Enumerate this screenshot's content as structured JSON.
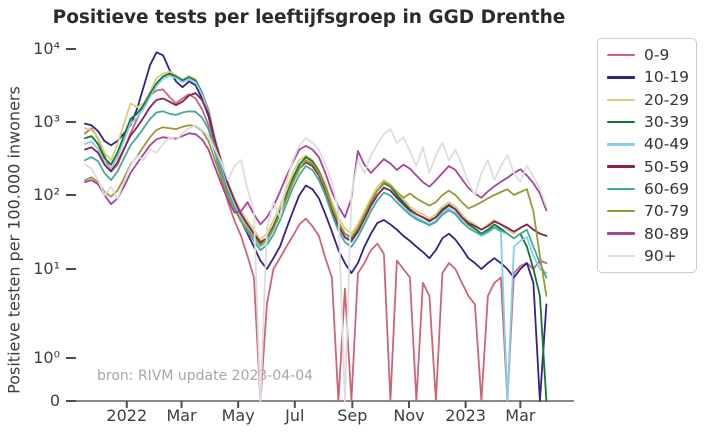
{
  "chart_data": {
    "type": "line",
    "title": "Positieve tests per leeftijfsgroep in GGD Drenthe",
    "ylabel": "Positieve testen per 100.000 inwoners",
    "xlabel": "",
    "source_note": "bron: RIVM update 2023-04-04",
    "yscale": "log-with-zero",
    "ylim": [
      0,
      10000
    ],
    "grid": false,
    "legend_position": "top-right",
    "x_start_date": "2021-11-17",
    "x_step_days": 7,
    "x_domain": [
      "2021-11-17",
      "2023-04-03"
    ],
    "x_ticks": [
      {
        "date": "2022-01-01",
        "label": "2022"
      },
      {
        "date": "2022-03-01",
        "label": "Mar"
      },
      {
        "date": "2022-05-01",
        "label": "May"
      },
      {
        "date": "2022-07-01",
        "label": "Jul"
      },
      {
        "date": "2022-09-01",
        "label": "Sep"
      },
      {
        "date": "2022-11-01",
        "label": "Nov"
      },
      {
        "date": "2023-01-01",
        "label": "2023"
      },
      {
        "date": "2023-03-01",
        "label": "Mar"
      }
    ],
    "y_ticks": [
      {
        "value": 10000,
        "label": "10⁴"
      },
      {
        "value": 1000,
        "label": "10³"
      },
      {
        "value": 100,
        "label": "10²"
      },
      {
        "value": 10,
        "label": "10¹"
      },
      {
        "value": 1,
        "label": "10⁰"
      },
      {
        "value": 0,
        "label": "0"
      }
    ],
    "series": [
      {
        "name": "0-9",
        "color": "#CC6677",
        "values": [
          700,
          820,
          600,
          350,
          210,
          260,
          420,
          700,
          1100,
          1600,
          2300,
          2700,
          2800,
          2200,
          1800,
          2100,
          2400,
          2100,
          1500,
          900,
          400,
          160,
          80,
          45,
          28,
          15,
          8,
          0,
          4,
          10,
          14,
          20,
          28,
          40,
          48,
          38,
          28,
          14,
          8,
          0,
          6,
          0,
          9,
          12,
          18,
          22,
          16,
          0,
          13,
          10,
          8,
          0,
          7,
          5,
          0,
          9,
          12,
          10,
          7,
          5,
          4,
          0,
          5,
          7,
          8,
          0,
          9,
          11,
          12,
          10,
          13,
          12
        ]
      },
      {
        "name": "10-19",
        "color": "#332288",
        "values": [
          950,
          900,
          750,
          550,
          480,
          550,
          700,
          900,
          1500,
          3000,
          6000,
          9000,
          8200,
          5200,
          3600,
          3000,
          3600,
          3200,
          2100,
          1200,
          500,
          240,
          120,
          70,
          45,
          30,
          20,
          13,
          10,
          14,
          20,
          35,
          60,
          100,
          135,
          120,
          90,
          55,
          32,
          18,
          12,
          9,
          12,
          20,
          30,
          42,
          46,
          40,
          34,
          28,
          24,
          20,
          17,
          14,
          18,
          26,
          30,
          25,
          19,
          14,
          12,
          10,
          12,
          14,
          12,
          10,
          8,
          10,
          12,
          7,
          0,
          4
        ]
      },
      {
        "name": "20-29",
        "color": "#DDCC77",
        "values": [
          820,
          780,
          620,
          380,
          300,
          500,
          950,
          1800,
          1600,
          1800,
          2600,
          4000,
          4600,
          4900,
          4400,
          3800,
          4300,
          3900,
          2600,
          1500,
          600,
          300,
          150,
          90,
          60,
          45,
          34,
          25,
          30,
          45,
          70,
          120,
          200,
          300,
          350,
          300,
          220,
          140,
          80,
          50,
          35,
          30,
          40,
          60,
          90,
          130,
          160,
          140,
          110,
          88,
          70,
          60,
          55,
          48,
          55,
          70,
          80,
          70,
          55,
          45,
          40,
          34,
          40,
          46,
          40,
          34,
          30,
          36,
          40,
          34,
          30,
          28
        ]
      },
      {
        "name": "30-39",
        "color": "#117733",
        "values": [
          600,
          640,
          500,
          320,
          260,
          380,
          650,
          1100,
          1300,
          1700,
          2400,
          3400,
          4200,
          4600,
          4200,
          3700,
          4100,
          3700,
          2500,
          1400,
          550,
          260,
          130,
          80,
          55,
          40,
          30,
          22,
          26,
          38,
          60,
          100,
          170,
          260,
          330,
          290,
          210,
          130,
          70,
          42,
          30,
          26,
          35,
          52,
          80,
          115,
          145,
          130,
          100,
          80,
          64,
          55,
          50,
          44,
          50,
          64,
          74,
          64,
          50,
          40,
          35,
          30,
          34,
          40,
          35,
          30,
          26,
          30,
          20,
          10,
          5,
          0
        ]
      },
      {
        "name": "40-49",
        "color": "#88CCEE",
        "values": [
          500,
          540,
          430,
          280,
          230,
          330,
          560,
          950,
          1150,
          1500,
          2200,
          3100,
          3900,
          4300,
          4000,
          3500,
          3900,
          3500,
          2400,
          1350,
          520,
          250,
          125,
          75,
          50,
          36,
          27,
          20,
          23,
          34,
          54,
          90,
          150,
          230,
          300,
          260,
          190,
          115,
          62,
          38,
          26,
          23,
          31,
          46,
          70,
          100,
          130,
          115,
          90,
          72,
          58,
          50,
          45,
          40,
          45,
          58,
          66,
          58,
          45,
          36,
          32,
          28,
          31,
          36,
          32,
          0,
          20,
          24,
          27,
          15,
          10,
          9
        ]
      },
      {
        "name": "50-59",
        "color": "#882255",
        "values": [
          420,
          450,
          380,
          260,
          210,
          280,
          430,
          650,
          850,
          1150,
          1600,
          2000,
          2100,
          1900,
          1700,
          1900,
          2300,
          2500,
          2000,
          1300,
          550,
          280,
          140,
          85,
          55,
          40,
          30,
          23,
          26,
          36,
          55,
          90,
          150,
          230,
          280,
          250,
          185,
          115,
          62,
          38,
          27,
          24,
          32,
          48,
          72,
          100,
          125,
          115,
          92,
          75,
          62,
          55,
          50,
          45,
          50,
          62,
          72,
          64,
          50,
          42,
          38,
          34,
          38,
          44,
          40,
          36,
          32,
          36,
          40,
          34,
          30,
          28
        ]
      },
      {
        "name": "60-69",
        "color": "#44AA99",
        "values": [
          300,
          330,
          290,
          200,
          160,
          210,
          320,
          480,
          620,
          820,
          1100,
          1350,
          1400,
          1300,
          1250,
          1350,
          1400,
          1380,
          1150,
          800,
          380,
          200,
          105,
          65,
          44,
          32,
          24,
          18,
          21,
          29,
          45,
          75,
          125,
          190,
          250,
          220,
          160,
          100,
          55,
          33,
          23,
          20,
          27,
          40,
          60,
          85,
          108,
          98,
          80,
          65,
          54,
          47,
          43,
          39,
          43,
          54,
          62,
          55,
          43,
          36,
          32,
          29,
          32,
          37,
          33,
          30,
          26,
          30,
          34,
          20,
          12,
          8
        ]
      },
      {
        "name": "70-79",
        "color": "#999933",
        "values": [
          160,
          175,
          150,
          110,
          95,
          115,
          170,
          260,
          340,
          460,
          620,
          780,
          850,
          820,
          800,
          860,
          900,
          880,
          760,
          550,
          300,
          170,
          95,
          62,
          45,
          34,
          27,
          21,
          25,
          35,
          55,
          90,
          150,
          230,
          300,
          270,
          200,
          125,
          70,
          43,
          30,
          27,
          36,
          54,
          82,
          115,
          150,
          135,
          110,
          92,
          105,
          90,
          80,
          72,
          80,
          100,
          115,
          100,
          80,
          66,
          72,
          80,
          90,
          100,
          110,
          120,
          100,
          110,
          120,
          60,
          15,
          5
        ]
      },
      {
        "name": "80-89",
        "color": "#AA4499",
        "values": [
          150,
          160,
          140,
          100,
          75,
          90,
          130,
          200,
          270,
          360,
          480,
          580,
          620,
          600,
          590,
          640,
          700,
          680,
          580,
          420,
          240,
          140,
          85,
          58,
          60,
          80,
          55,
          40,
          50,
          70,
          110,
          180,
          280,
          420,
          470,
          420,
          330,
          200,
          110,
          70,
          50,
          90,
          400,
          260,
          200,
          250,
          310,
          270,
          220,
          260,
          230,
          185,
          150,
          130,
          160,
          200,
          250,
          220,
          165,
          125,
          105,
          92,
          112,
          132,
          152,
          172,
          200,
          225,
          185,
          145,
          105,
          62
        ]
      },
      {
        "name": "90+",
        "color": "#DDDDDD",
        "values": [
          260,
          230,
          160,
          100,
          130,
          90,
          150,
          250,
          350,
          300,
          420,
          380,
          500,
          620,
          560,
          700,
          820,
          900,
          780,
          650,
          420,
          280,
          160,
          250,
          300,
          120,
          60,
          0,
          35,
          80,
          50,
          150,
          300,
          480,
          600,
          520,
          420,
          260,
          150,
          60,
          0,
          100,
          300,
          200,
          350,
          500,
          680,
          800,
          520,
          620,
          400,
          250,
          450,
          200,
          350,
          520,
          300,
          420,
          260,
          150,
          100,
          200,
          300,
          160,
          250,
          350,
          200,
          150,
          250,
          180,
          120,
          70
        ]
      }
    ]
  }
}
